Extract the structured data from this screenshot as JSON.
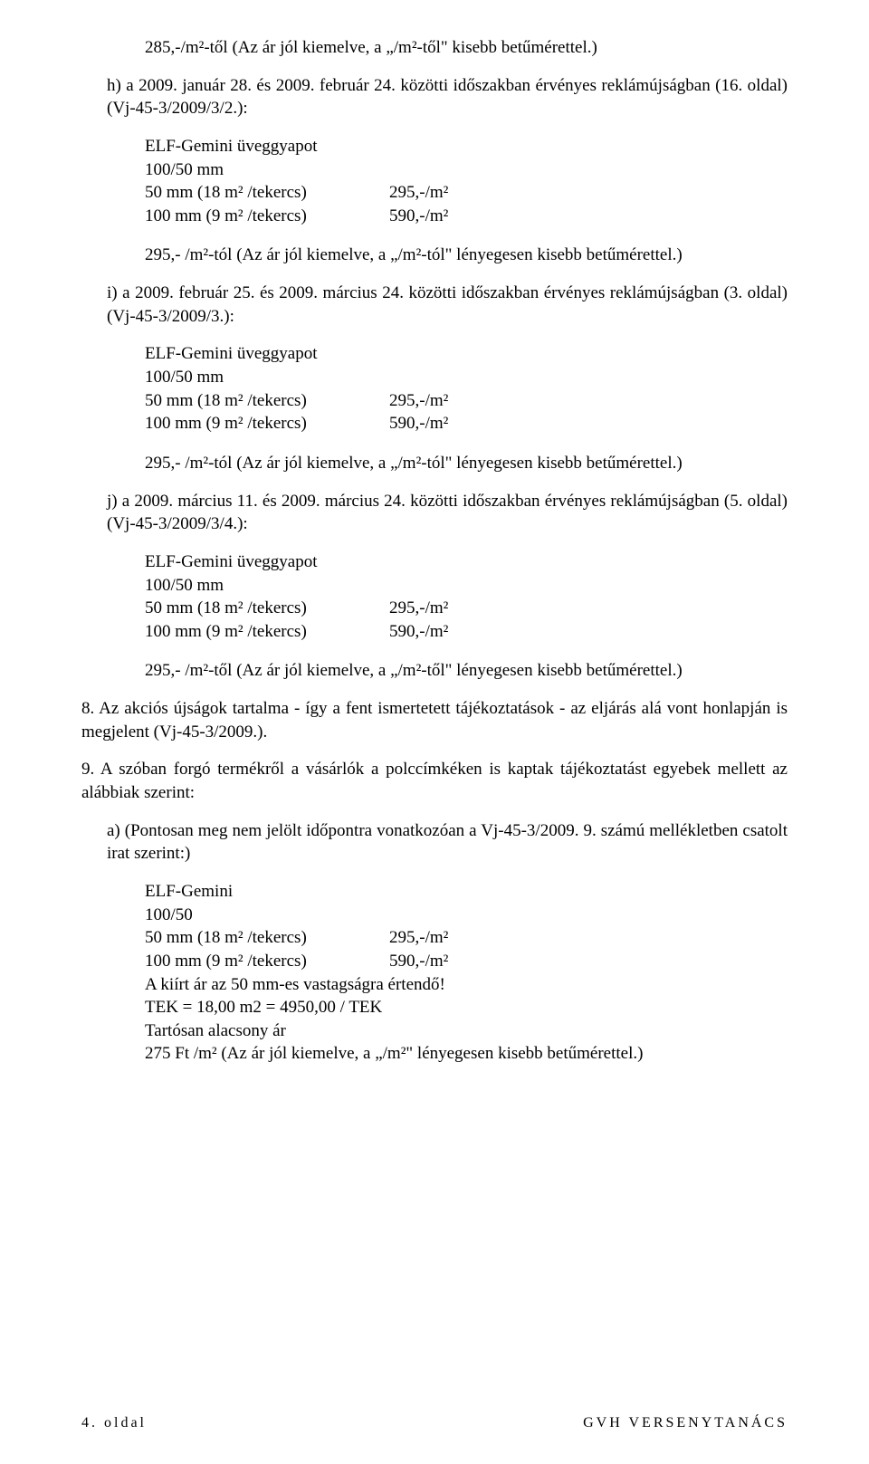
{
  "intro_line": "285,-/m²-től (Az ár jól kiemelve, a „/m²-től\" kisebb betűmérettel.)",
  "sections": {
    "h": {
      "lead": "h)  a 2009. január 28. és 2009. február 24. közötti időszakban érvényes reklámújságban (16. oldal) (Vj-45-3/2009/3/2.):",
      "product_title": "ELF-Gemini üveggyapot",
      "product_size": "100/50 mm",
      "row1_left": "50 mm (18 m² /tekercs)",
      "row1_right": "295,-/m²",
      "row2_left": "100 mm (9 m² /tekercs)",
      "row2_right": "590,-/m²",
      "note": "295,- /m²-tól (Az ár jól kiemelve, a „/m²-tól\" lényegesen kisebb betűmérettel.)"
    },
    "i": {
      "lead": "i)  a 2009. február 25. és 2009. március 24. közötti időszakban érvényes reklámújságban (3. oldal) (Vj-45-3/2009/3.):",
      "product_title": "ELF-Gemini üveggyapot",
      "product_size": "100/50 mm",
      "row1_left": "50 mm (18 m² /tekercs)",
      "row1_right": "295,-/m²",
      "row2_left": "100 mm (9 m² /tekercs)",
      "row2_right": "590,-/m²",
      "note": "295,- /m²-tól (Az ár jól kiemelve, a „/m²-tól\" lényegesen kisebb betűmérettel.)"
    },
    "j": {
      "lead": "j)  a 2009. március 11. és 2009. március 24. közötti időszakban érvényes reklámújságban (5. oldal) (Vj-45-3/2009/3/4.):",
      "product_title": "ELF-Gemini üveggyapot",
      "product_size": "100/50 mm",
      "row1_left": "50 mm (18 m² /tekercs)",
      "row1_right": "295,-/m²",
      "row2_left": "100 mm (9 m² /tekercs)",
      "row2_right": "590,-/m²",
      "note": "295,- /m²-től (Az ár jól kiemelve, a „/m²-től\" lényegesen kisebb betűmérettel.)"
    }
  },
  "numbered": {
    "p8": "8.  Az akciós újságok tartalma - így a fent ismertetett tájékoztatások - az eljárás alá vont honlapján is megjelent (Vj-45-3/2009.).",
    "p9": "9.  A szóban forgó termékről a vásárlók a polccímkéken is kaptak tájékoztatást egyebek mellett az alábbiak szerint:"
  },
  "sub_a": {
    "lead": "a) (Pontosan meg nem jelölt időpontra vonatkozóan a Vj-45-3/2009. 9. számú mellékletben csatolt irat szerint:)",
    "product_title": "ELF-Gemini",
    "product_size": "100/50",
    "row1_left": "50 mm (18 m² /tekercs)",
    "row1_right": "295,-/m²",
    "row2_left": "100 mm (9 m² /tekercs)",
    "row2_right": "590,-/m²",
    "line_price": "A kiírt ár az 50 mm-es vastagságra értendő!",
    "line_tek": "TEK = 18,00 m2 = 4950,00 / TEK",
    "line_tartos": "Tartósan alacsony ár",
    "line_275": "275 Ft /m² (Az ár jól kiemelve, a „/m²\" lényegesen kisebb betűmérettel.)"
  },
  "footer": {
    "left": "4. oldal",
    "right": "GVH VERSENYTANÁCS"
  }
}
